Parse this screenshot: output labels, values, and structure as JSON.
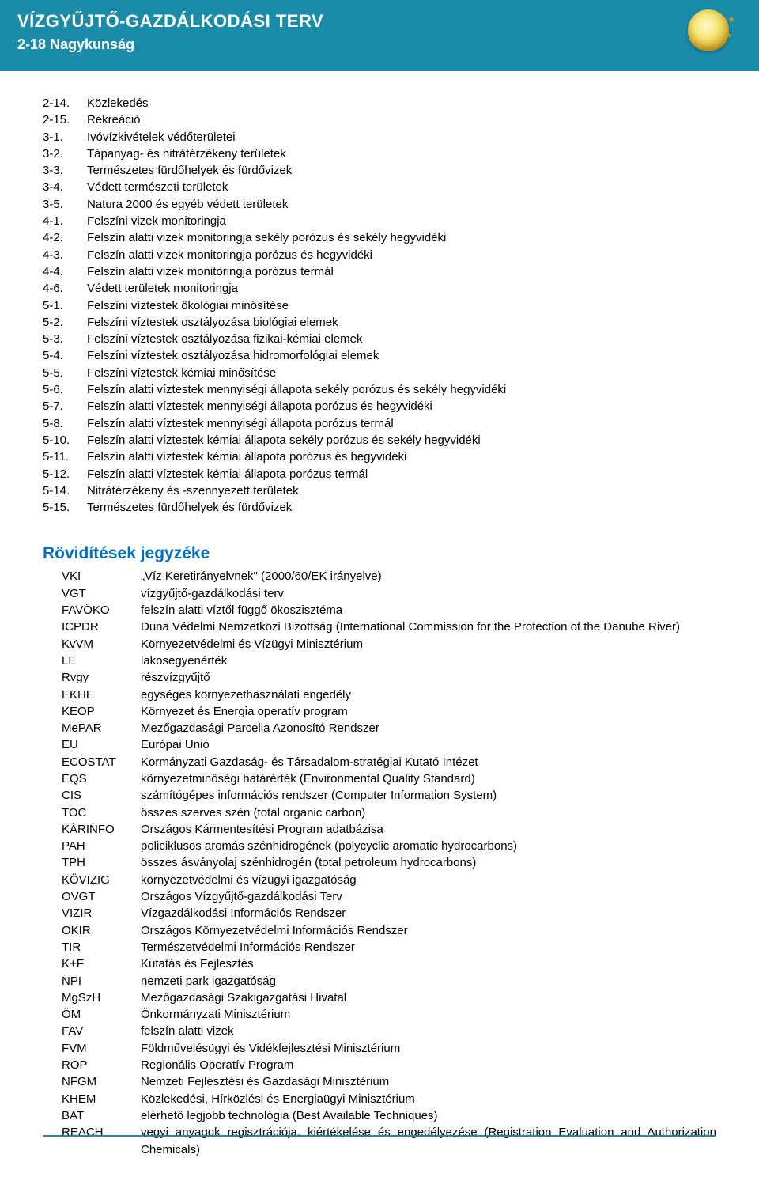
{
  "header": {
    "title": "VÍZGYŰJTŐ-GAZDÁLKODÁSI TERV",
    "subtitle": "2-18 Nagykunság"
  },
  "toc": [
    {
      "num": "2-14.",
      "label": "Közlekedés"
    },
    {
      "num": "2-15.",
      "label": "Rekreáció"
    },
    {
      "num": "3-1.",
      "label": "Ivóvízkivételek védőterületei"
    },
    {
      "num": "3-2.",
      "label": "Tápanyag- és nitrátérzékeny területek"
    },
    {
      "num": "3-3.",
      "label": "Természetes fürdőhelyek és fürdővizek"
    },
    {
      "num": "3-4.",
      "label": "Védett természeti területek"
    },
    {
      "num": "3-5.",
      "label": "Natura 2000 és egyéb védett területek"
    },
    {
      "num": "4-1.",
      "label": "Felszíni vizek monitoringja"
    },
    {
      "num": "4-2.",
      "label": "Felszín alatti vizek monitoringja sekély porózus és sekély hegyvidéki"
    },
    {
      "num": "4-3.",
      "label": "Felszín alatti vizek monitoringja porózus és hegyvidéki"
    },
    {
      "num": "4-4.",
      "label": "Felszín alatti vizek monitoringja porózus termál"
    },
    {
      "num": "4-6.",
      "label": "Védett területek monitoringja"
    },
    {
      "num": "5-1.",
      "label": "Felszíni víztestek ökológiai minősítése"
    },
    {
      "num": "5-2.",
      "label": "Felszíni víztestek osztályozása biológiai elemek"
    },
    {
      "num": "5-3.",
      "label": "Felszíni víztestek osztályozása fizikai-kémiai elemek"
    },
    {
      "num": "5-4.",
      "label": "Felszíni víztestek osztályozása hidromorfológiai elemek"
    },
    {
      "num": "5-5.",
      "label": "Felszíni víztestek kémiai minősítése"
    },
    {
      "num": "5-6.",
      "label": "Felszín alatti víztestek mennyiségi állapota sekély porózus és sekély hegyvidéki"
    },
    {
      "num": "5-7.",
      "label": "Felszín alatti víztestek mennyiségi állapota porózus és hegyvidéki"
    },
    {
      "num": "5-8.",
      "label": "Felszín alatti víztestek mennyiségi állapota porózus termál"
    },
    {
      "num": "5-10.",
      "label": "Felszín alatti víztestek kémiai állapota sekély porózus és sekély hegyvidéki"
    },
    {
      "num": "5-11.",
      "label": "Felszín alatti víztestek kémiai állapota porózus és hegyvidéki"
    },
    {
      "num": "5-12.",
      "label": "Felszín alatti víztestek kémiai állapota porózus termál"
    },
    {
      "num": "5-14.",
      "label": "Nitrátérzékeny és -szennyezett területek"
    },
    {
      "num": "5-15.",
      "label": "Természetes fürdőhelyek és fürdővizek"
    }
  ],
  "abbrev_heading": "Rövidítések jegyzéke",
  "abbreviations": [
    {
      "key": "VKI",
      "def": "„Víz Keretirányelvnek\" (2000/60/EK irányelve)"
    },
    {
      "key": "VGT",
      "def": "vízgyűjtő-gazdálkodási terv"
    },
    {
      "key": "FAVÖKO",
      "def": "felszín alatti víztől függő ökoszisztéma"
    },
    {
      "key": "ICPDR",
      "def": "Duna Védelmi Nemzetközi Bizottság (International Commission for the Protection of the Danube River)"
    },
    {
      "key": "KvVM",
      "def": "Környezetvédelmi és Vízügyi Minisztérium"
    },
    {
      "key": "LE",
      "def": "lakosegyenérték"
    },
    {
      "key": "Rvgy",
      "def": "részvízgyűjtő"
    },
    {
      "key": "EKHE",
      "def": "egységes környezethasználati engedély"
    },
    {
      "key": "KEOP",
      "def": "Környezet és Energia operatív program"
    },
    {
      "key": "MePAR",
      "def": "Mezőgazdasági Parcella Azonosító Rendszer"
    },
    {
      "key": "EU",
      "def": "Európai Unió"
    },
    {
      "key": "ECOSTAT",
      "def": "Kormányzati Gazdaság- és Társadalom-stratégiai Kutató Intézet"
    },
    {
      "key": "EQS",
      "def": "környezetminőségi határérték (Environmental Quality Standard)"
    },
    {
      "key": "CIS",
      "def": "számítógépes információs rendszer (Computer Information System)"
    },
    {
      "key": "TOC",
      "def": "összes szerves szén (total organic carbon)"
    },
    {
      "key": "KÁRINFO",
      "def": "Országos Kármentesítési Program adatbázisa"
    },
    {
      "key": "PAH",
      "def": "policiklusos aromás szénhidrogének (polycyclic aromatic hydrocarbons)"
    },
    {
      "key": "TPH",
      "def": "összes ásványolaj szénhidrogén (total petroleum hydrocarbons)"
    },
    {
      "key": "KÖVIZIG",
      "def": "környezetvédelmi és vízügyi igazgatóság"
    },
    {
      "key": "OVGT",
      "def": "Országos Vízgyűjtő-gazdálkodási Terv"
    },
    {
      "key": "VIZIR",
      "def": "Vízgazdálkodási Információs Rendszer"
    },
    {
      "key": "OKIR",
      "def": "Országos Környezetvédelmi Információs Rendszer"
    },
    {
      "key": "TIR",
      "def": "Természetvédelmi Információs Rendszer"
    },
    {
      "key": "K+F",
      "def": "Kutatás és Fejlesztés"
    },
    {
      "key": "NPI",
      "def": "nemzeti park igazgatóság"
    },
    {
      "key": "MgSzH",
      "def": "Mezőgazdasági Szakigazgatási Hivatal"
    },
    {
      "key": "ÖM",
      "def": "Önkormányzati Minisztérium"
    },
    {
      "key": "FAV",
      "def": "felszín alatti vizek"
    },
    {
      "key": "FVM",
      "def": "Földművelésügyi és Vidékfejlesztési Minisztérium"
    },
    {
      "key": "ROP",
      "def": "Regionális Operatív Program"
    },
    {
      "key": "NFGM",
      "def": "Nemzeti Fejlesztési és Gazdasági Minisztérium"
    },
    {
      "key": "KHEM",
      "def": "Közlekedési, Hírközlési és Energiaügyi Minisztérium"
    },
    {
      "key": "BAT",
      "def": "elérhető legjobb technológia (Best Available Techniques)"
    },
    {
      "key": "REACH",
      "def": "vegyi anyagok regisztrációja, kiértékelése és engedélyezése (Registration Evaluation and Authorization Chemicals)"
    }
  ],
  "colors": {
    "header_bg": "#1a8ba8",
    "header_text": "#ffffff",
    "heading_color": "#0070c0",
    "body_text": "#000000",
    "background": "#ffffff"
  },
  "typography": {
    "header_title_size": 22,
    "header_subtitle_size": 18,
    "body_size": 15,
    "heading_size": 21,
    "font_family": "Arial"
  }
}
